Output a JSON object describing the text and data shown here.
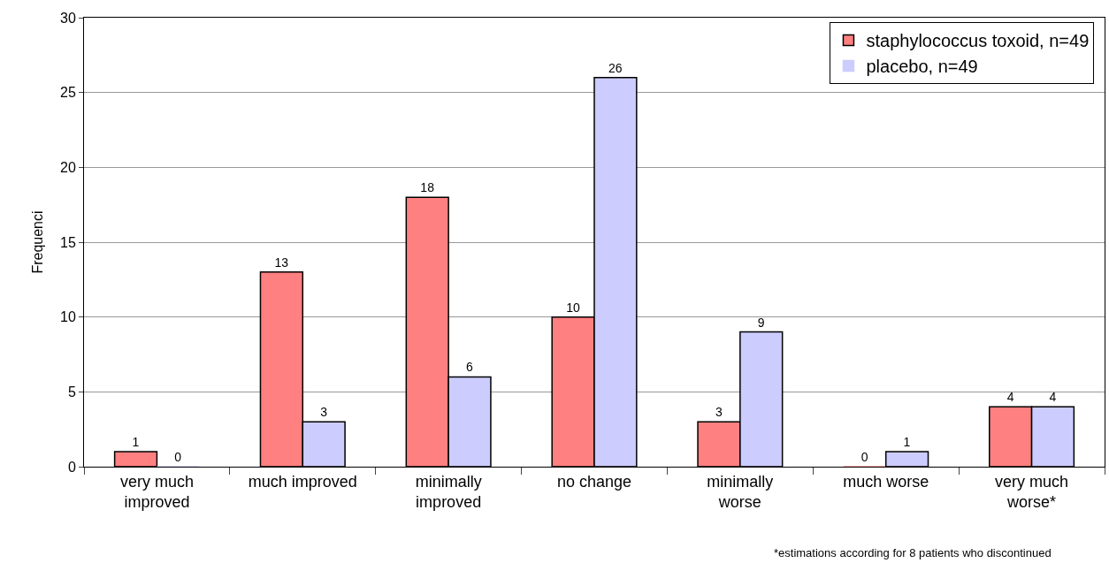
{
  "chart_data": {
    "type": "bar",
    "ylabel": "Frequenci",
    "categories": [
      "very much improved",
      "much improved",
      "minimally improved",
      "no change",
      "minimally worse",
      "much worse",
      "very much worse*"
    ],
    "series": [
      {
        "name": "staphylococcus toxoid, n=49",
        "color": "#ff8080",
        "values": [
          1,
          13,
          18,
          10,
          3,
          0,
          4
        ]
      },
      {
        "name": "placebo, n=49",
        "color": "#ccccff",
        "values": [
          0,
          3,
          6,
          26,
          9,
          1,
          4
        ]
      }
    ],
    "ylim": [
      0,
      30
    ],
    "yticks": [
      0,
      5,
      10,
      15,
      20,
      25,
      30
    ],
    "grid": "y",
    "legend": "top right",
    "data_labels": true,
    "annotations": [
      "*estimations according for 8 patients who discontinued"
    ]
  }
}
